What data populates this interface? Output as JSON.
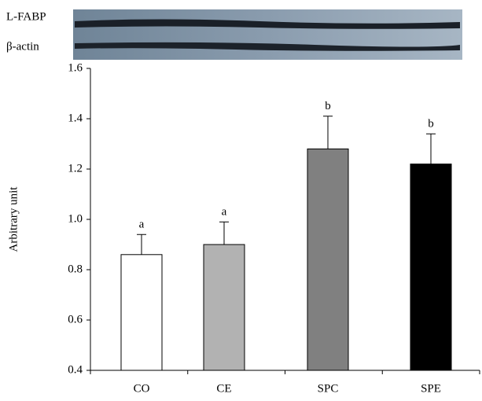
{
  "chart_data": {
    "type": "bar",
    "blot_labels": [
      "L-FABP",
      "β-actin"
    ],
    "y_label": "Arbitrary unit",
    "categories": [
      "CO",
      "CE",
      "SPC",
      "SPE"
    ],
    "values": [
      0.86,
      0.9,
      1.28,
      1.22
    ],
    "errors": [
      0.08,
      0.09,
      0.13,
      0.12
    ],
    "annotations": [
      "a",
      "a",
      "b",
      "b"
    ],
    "colors": [
      "#ffffff",
      "#b2b2b2",
      "#808080",
      "#000000"
    ],
    "ylim": [
      0.4,
      1.6
    ],
    "yticks": [
      0.4,
      0.6,
      0.8,
      {
        "value": 1,
        "label": "1.0"
      },
      1.2,
      1.4,
      1.6
    ]
  }
}
